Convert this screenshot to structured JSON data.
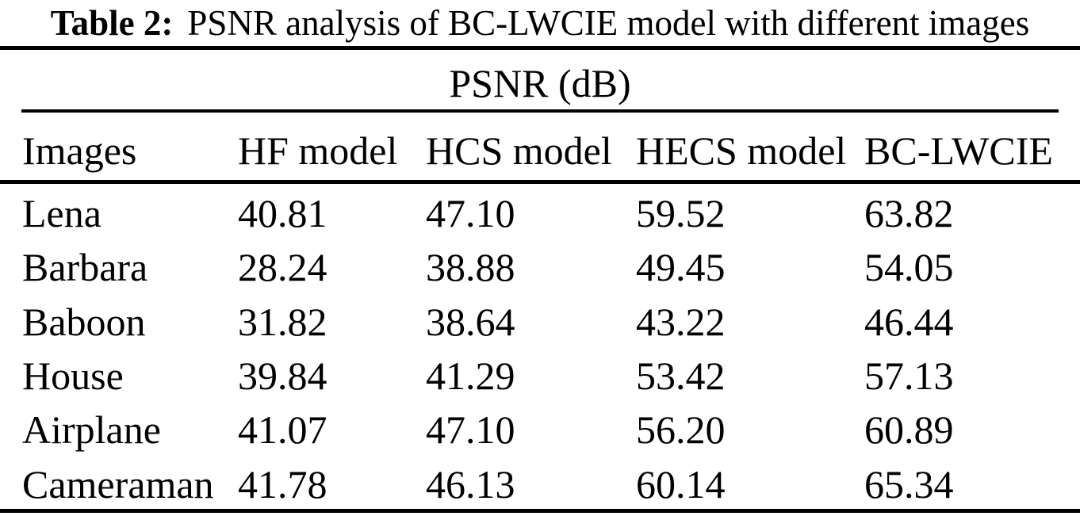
{
  "page": {
    "background": "#ffffff",
    "text_color": "#000000",
    "rule_color": "#000000"
  },
  "caption": {
    "label": "Table 2:",
    "text": "PSNR analysis of BC-LWCIE model with different images"
  },
  "table": {
    "group_header": "PSNR (dB)",
    "columns": [
      "Images",
      "HF model",
      "HCS model",
      "HECS model",
      "BC-LWCIE"
    ],
    "rows": [
      {
        "image": "Lena",
        "values": [
          "40.81",
          "47.10",
          "59.52",
          "63.82"
        ]
      },
      {
        "image": "Barbara",
        "values": [
          "28.24",
          "38.88",
          "49.45",
          "54.05"
        ]
      },
      {
        "image": "Baboon",
        "values": [
          "31.82",
          "38.64",
          "43.22",
          "46.44"
        ]
      },
      {
        "image": "House",
        "values": [
          "39.84",
          "41.29",
          "53.42",
          "57.13"
        ]
      },
      {
        "image": "Airplane",
        "values": [
          "41.07",
          "47.10",
          "56.20",
          "60.89"
        ]
      },
      {
        "image": "Cameraman",
        "values": [
          "41.78",
          "46.13",
          "60.14",
          "65.34"
        ]
      }
    ]
  },
  "chart_data": {
    "type": "table",
    "title": "Table 2: PSNR analysis of BC-LWCIE model with different images",
    "group_header": "PSNR (dB)",
    "columns": [
      "Images",
      "HF model",
      "HCS model",
      "HECS model",
      "BC-LWCIE"
    ],
    "rows": [
      [
        "Lena",
        40.81,
        47.1,
        59.52,
        63.82
      ],
      [
        "Barbara",
        28.24,
        38.88,
        49.45,
        54.05
      ],
      [
        "Baboon",
        31.82,
        38.64,
        43.22,
        46.44
      ],
      [
        "House",
        39.84,
        41.29,
        53.42,
        57.13
      ],
      [
        "Airplane",
        41.07,
        47.1,
        56.2,
        60.89
      ],
      [
        "Cameraman",
        41.78,
        46.13,
        60.14,
        65.34
      ]
    ]
  }
}
